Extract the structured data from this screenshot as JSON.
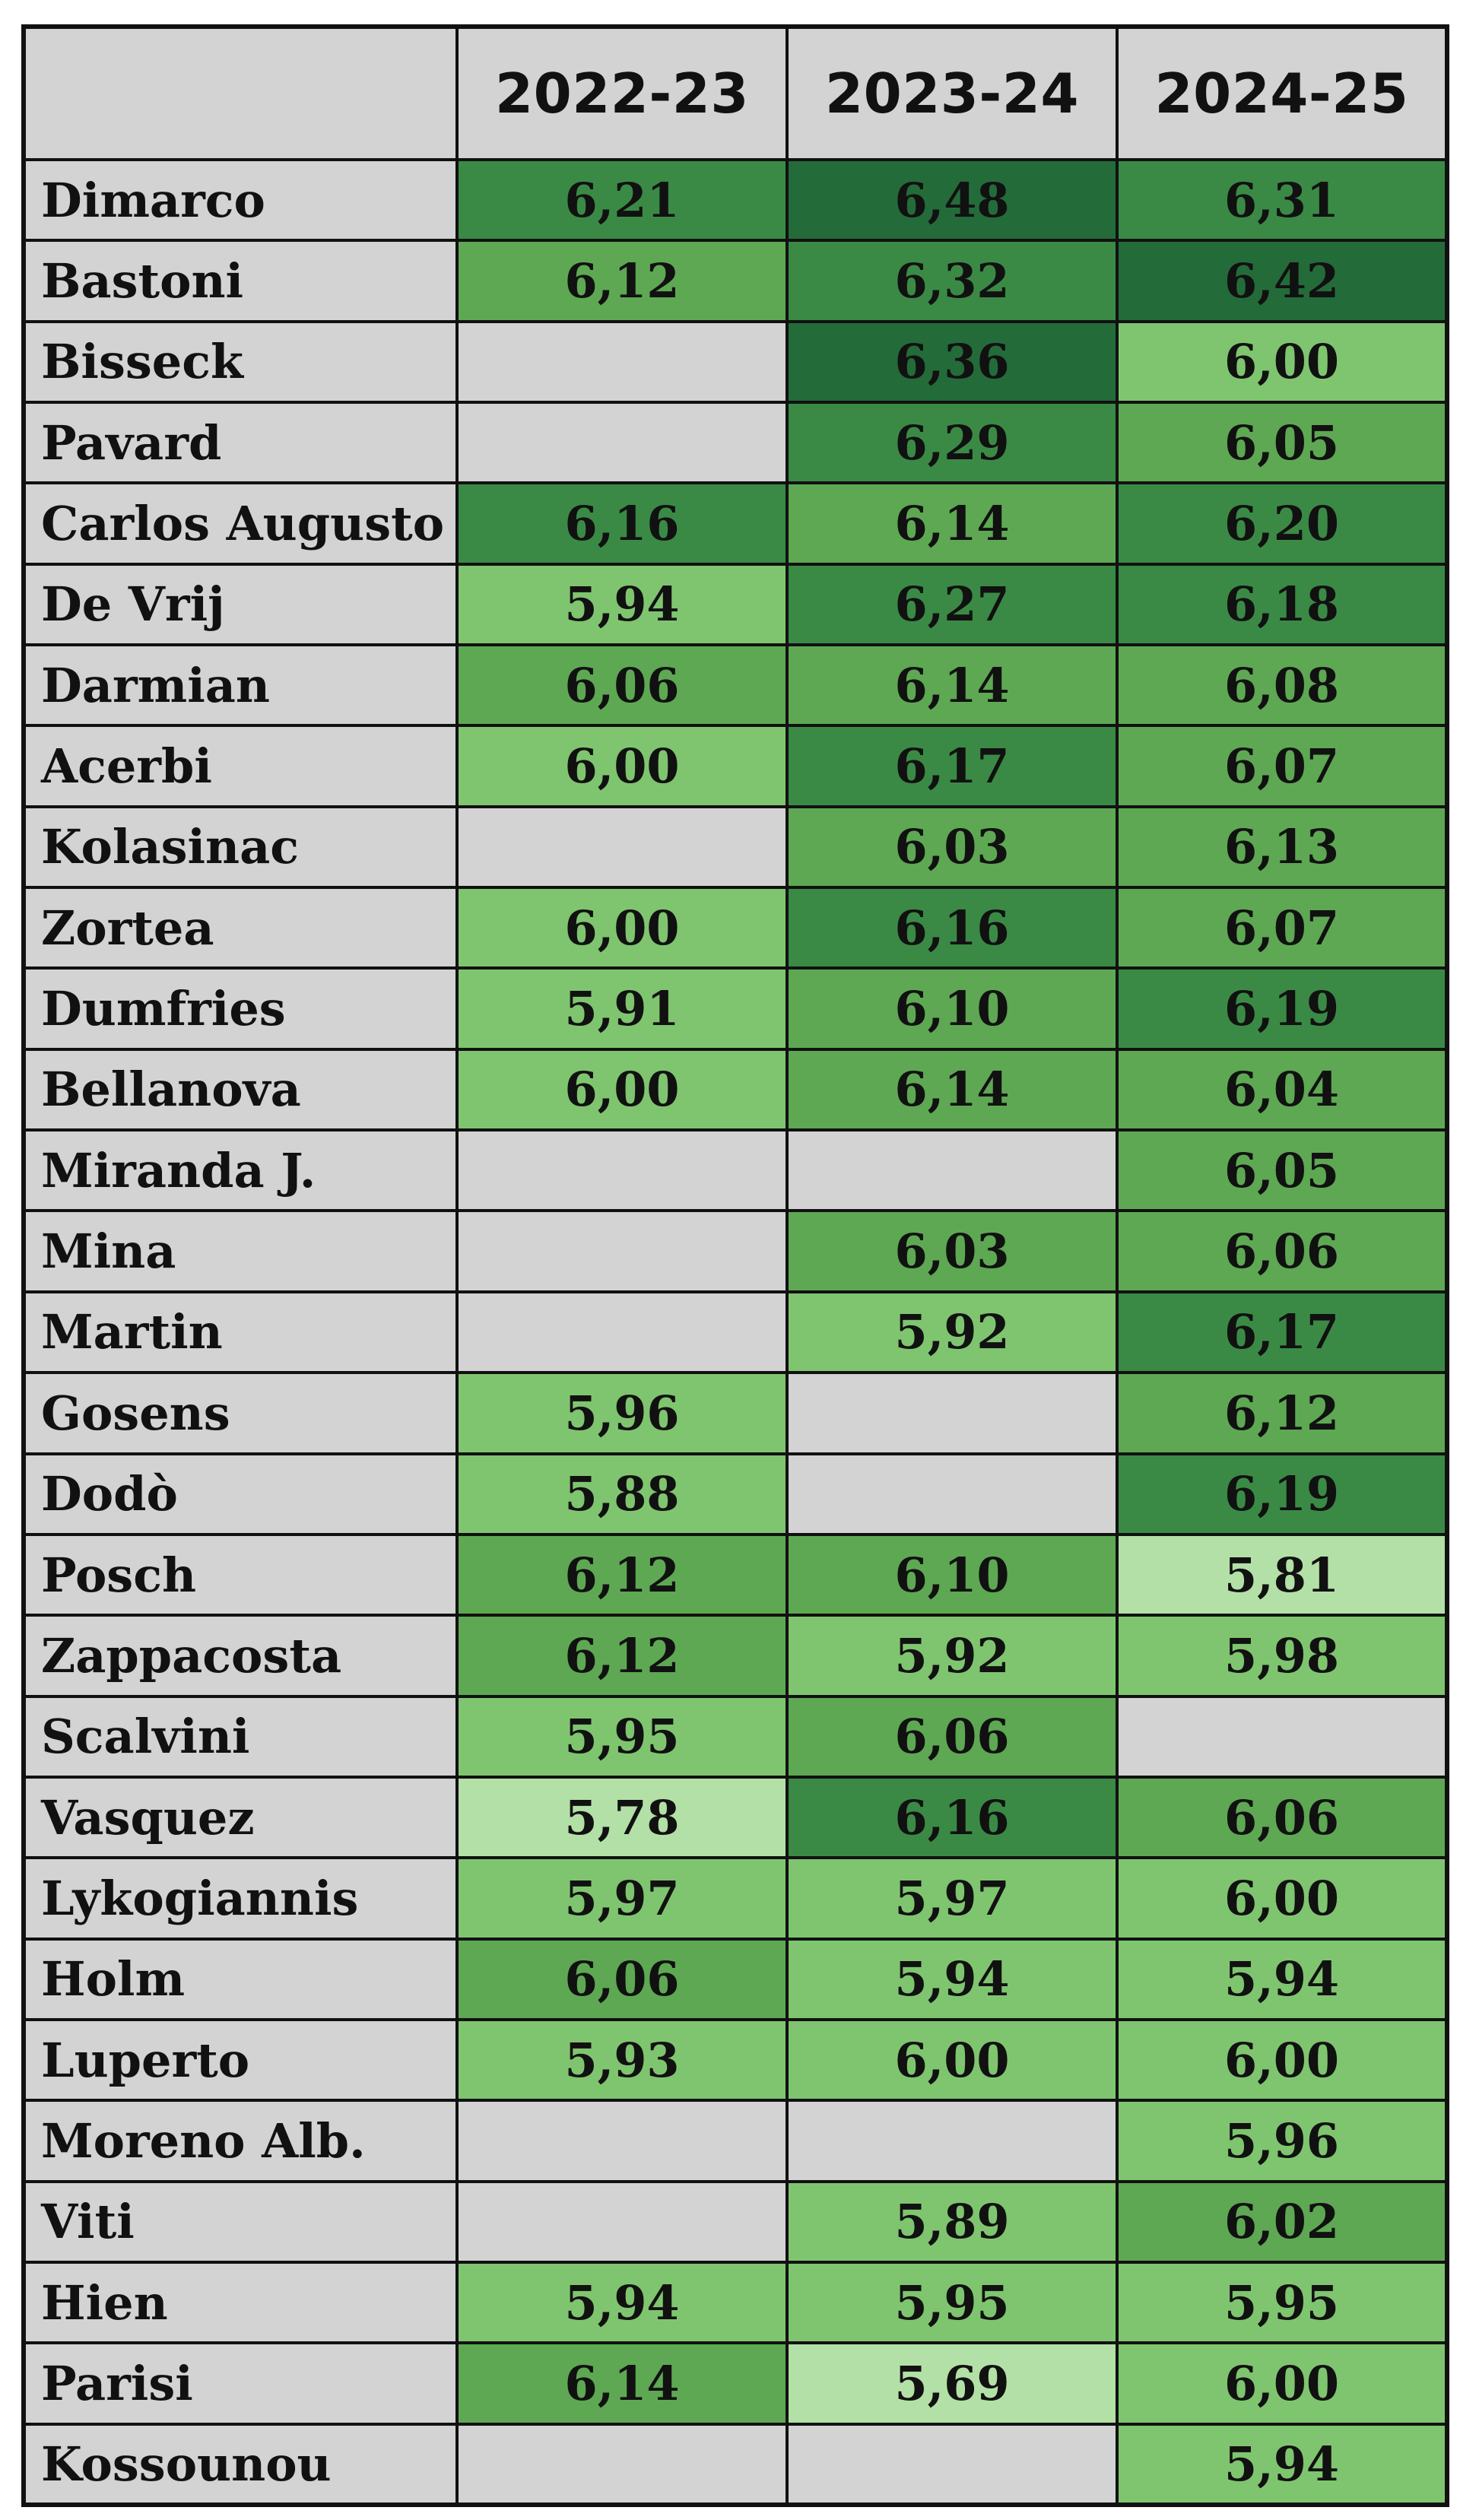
{
  "chart_data": {
    "type": "heatmap",
    "columns": [
      "2022-23",
      "2023-24",
      "2024-25"
    ],
    "rows": [
      {
        "player": "Dimarco",
        "values": [
          "6,21",
          "6,48",
          "6,31"
        ]
      },
      {
        "player": "Bastoni",
        "values": [
          "6,12",
          "6,32",
          "6,42"
        ]
      },
      {
        "player": "Bisseck",
        "values": [
          null,
          "6,36",
          "6,00"
        ]
      },
      {
        "player": "Pavard",
        "values": [
          null,
          "6,29",
          "6,05"
        ]
      },
      {
        "player": "Carlos Augusto",
        "values": [
          "6,16",
          "6,14",
          "6,20"
        ]
      },
      {
        "player": "De Vrij",
        "values": [
          "5,94",
          "6,27",
          "6,18"
        ]
      },
      {
        "player": "Darmian",
        "values": [
          "6,06",
          "6,14",
          "6,08"
        ]
      },
      {
        "player": "Acerbi",
        "values": [
          "6,00",
          "6,17",
          "6,07"
        ]
      },
      {
        "player": "Kolasinac",
        "values": [
          null,
          "6,03",
          "6,13"
        ]
      },
      {
        "player": "Zortea",
        "values": [
          "6,00",
          "6,16",
          "6,07"
        ]
      },
      {
        "player": "Dumfries",
        "values": [
          "5,91",
          "6,10",
          "6,19"
        ]
      },
      {
        "player": "Bellanova",
        "values": [
          "6,00",
          "6,14",
          "6,04"
        ]
      },
      {
        "player": "Miranda J.",
        "values": [
          null,
          null,
          "6,05"
        ]
      },
      {
        "player": "Mina",
        "values": [
          null,
          "6,03",
          "6,06"
        ]
      },
      {
        "player": "Martin",
        "values": [
          null,
          "5,92",
          "6,17"
        ]
      },
      {
        "player": "Gosens",
        "values": [
          "5,96",
          null,
          "6,12"
        ]
      },
      {
        "player": "Dodò",
        "values": [
          "5,88",
          null,
          "6,19"
        ]
      },
      {
        "player": "Posch",
        "values": [
          "6,12",
          "6,10",
          "5,81"
        ]
      },
      {
        "player": "Zappacosta",
        "values": [
          "6,12",
          "5,92",
          "5,98"
        ]
      },
      {
        "player": "Scalvini",
        "values": [
          "5,95",
          "6,06",
          null
        ]
      },
      {
        "player": "Vasquez",
        "values": [
          "5,78",
          "6,16",
          "6,06"
        ]
      },
      {
        "player": "Lykogiannis",
        "values": [
          "5,97",
          "5,97",
          "6,00"
        ]
      },
      {
        "player": "Holm",
        "values": [
          "6,06",
          "5,94",
          "5,94"
        ]
      },
      {
        "player": "Luperto",
        "values": [
          "5,93",
          "6,00",
          "6,00"
        ]
      },
      {
        "player": "Moreno Alb.",
        "values": [
          null,
          null,
          "5,96"
        ]
      },
      {
        "player": "Viti",
        "values": [
          null,
          "5,89",
          "6,02"
        ]
      },
      {
        "player": "Hien",
        "values": [
          "5,94",
          "5,95",
          "5,95"
        ]
      },
      {
        "player": "Parisi",
        "values": [
          "6,14",
          "5,69",
          "6,00"
        ]
      },
      {
        "player": "Kossounou",
        "values": [
          null,
          null,
          "5,94"
        ]
      }
    ],
    "colors": {
      "empty": "#d3d3d3",
      "header": "#d3d3d3",
      "pale": "#b3e0a6",
      "light": "#7fc56f",
      "medium": "#5ea853",
      "dark": "#3a8a46",
      "darkest": "#246b3a",
      "border": "#111111",
      "text": "#111111"
    }
  }
}
